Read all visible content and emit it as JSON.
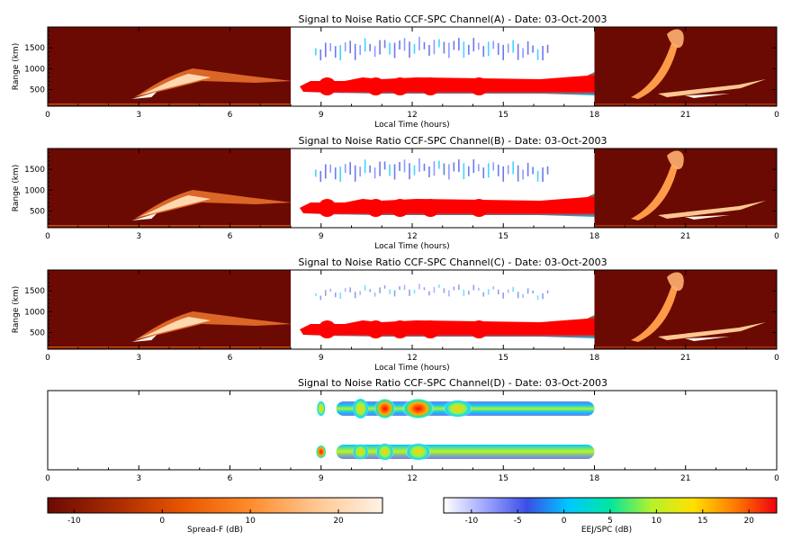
{
  "colors": {
    "spread_f_background": "#6b0a02",
    "background": "#ffffff",
    "axis": "#000000"
  },
  "chart_data": [
    {
      "type": "heatmap",
      "title": "Signal to Noise Ratio CCF-SPC Channel(A) - Date: 03-Oct-2003",
      "xlabel": "Local Time (hours)",
      "ylabel": "Range (km)",
      "xlim": [
        0,
        24
      ],
      "ylim": [
        100,
        2000
      ],
      "xticks": [
        "0",
        "3",
        "6",
        "9",
        "12",
        "15",
        "18",
        "21",
        "0"
      ],
      "yticks": [
        "500",
        "1000",
        "1500"
      ],
      "segments": [
        {
          "name": "Spread-F",
          "x": [
            0,
            8
          ]
        },
        {
          "name": "EEJ/SPC",
          "x": [
            8,
            18
          ]
        },
        {
          "name": "Spread-F",
          "x": [
            18,
            24
          ]
        }
      ]
    },
    {
      "type": "heatmap",
      "title": "Signal to Noise Ratio CCF-SPC Channel(B) - Date: 03-Oct-2003",
      "xlabel": "Local Time (hours)",
      "ylabel": "Range (km)",
      "xlim": [
        0,
        24
      ],
      "ylim": [
        100,
        2000
      ],
      "xticks": [
        "0",
        "3",
        "6",
        "9",
        "12",
        "15",
        "18",
        "21",
        "0"
      ],
      "yticks": [
        "500",
        "1000",
        "1500"
      ],
      "segments": [
        {
          "name": "Spread-F",
          "x": [
            0,
            8
          ]
        },
        {
          "name": "EEJ/SPC",
          "x": [
            8,
            18
          ]
        },
        {
          "name": "Spread-F",
          "x": [
            18,
            24
          ]
        }
      ]
    },
    {
      "type": "heatmap",
      "title": "Signal to Noise Ratio CCF-SPC Channel(C) - Date: 03-Oct-2003",
      "xlabel": "Local Time (hours)",
      "ylabel": "Range (km)",
      "xlim": [
        0,
        24
      ],
      "ylim": [
        100,
        2000
      ],
      "xticks": [
        "0",
        "3",
        "6",
        "9",
        "12",
        "15",
        "18",
        "21",
        "0"
      ],
      "yticks": [
        "500",
        "1000",
        "1500"
      ],
      "segments": [
        {
          "name": "Spread-F",
          "x": [
            0,
            8
          ]
        },
        {
          "name": "EEJ/SPC",
          "x": [
            8,
            18
          ]
        },
        {
          "name": "Spread-F",
          "x": [
            18,
            24
          ]
        }
      ]
    },
    {
      "type": "heatmap",
      "title": "Signal to Noise Ratio CCF-SPC Channel(D) - Date: 03-Oct-2003",
      "xlabel": "",
      "ylabel": "",
      "xlim": [
        0,
        24
      ],
      "xticks": [
        "0",
        "3",
        "6",
        "9",
        "12",
        "15",
        "18",
        "21",
        "0"
      ],
      "yticks": []
    }
  ],
  "colorbars": [
    {
      "label": "Spread-F (dB)",
      "range": [
        -13,
        25
      ],
      "ticks": [
        "-10",
        "0",
        "10",
        "20"
      ],
      "tick_values": [
        -10,
        0,
        10,
        20
      ],
      "colors": [
        "#6b0a02",
        "#a82a00",
        "#e85400",
        "#ff8a2a",
        "#ffc690",
        "#fff3e6"
      ]
    },
    {
      "label": "EEJ/SPC (dB)",
      "range": [
        -13,
        23
      ],
      "ticks": [
        "-10",
        "-5",
        "0",
        "5",
        "10",
        "15",
        "20"
      ],
      "tick_values": [
        -10,
        -5,
        0,
        5,
        10,
        15,
        20
      ],
      "colors": [
        "#ffffff",
        "#9ea6ff",
        "#3a4ee6",
        "#00c8ff",
        "#00e6a0",
        "#b6f22a",
        "#ffe000",
        "#ff7a00",
        "#f00010"
      ]
    }
  ]
}
